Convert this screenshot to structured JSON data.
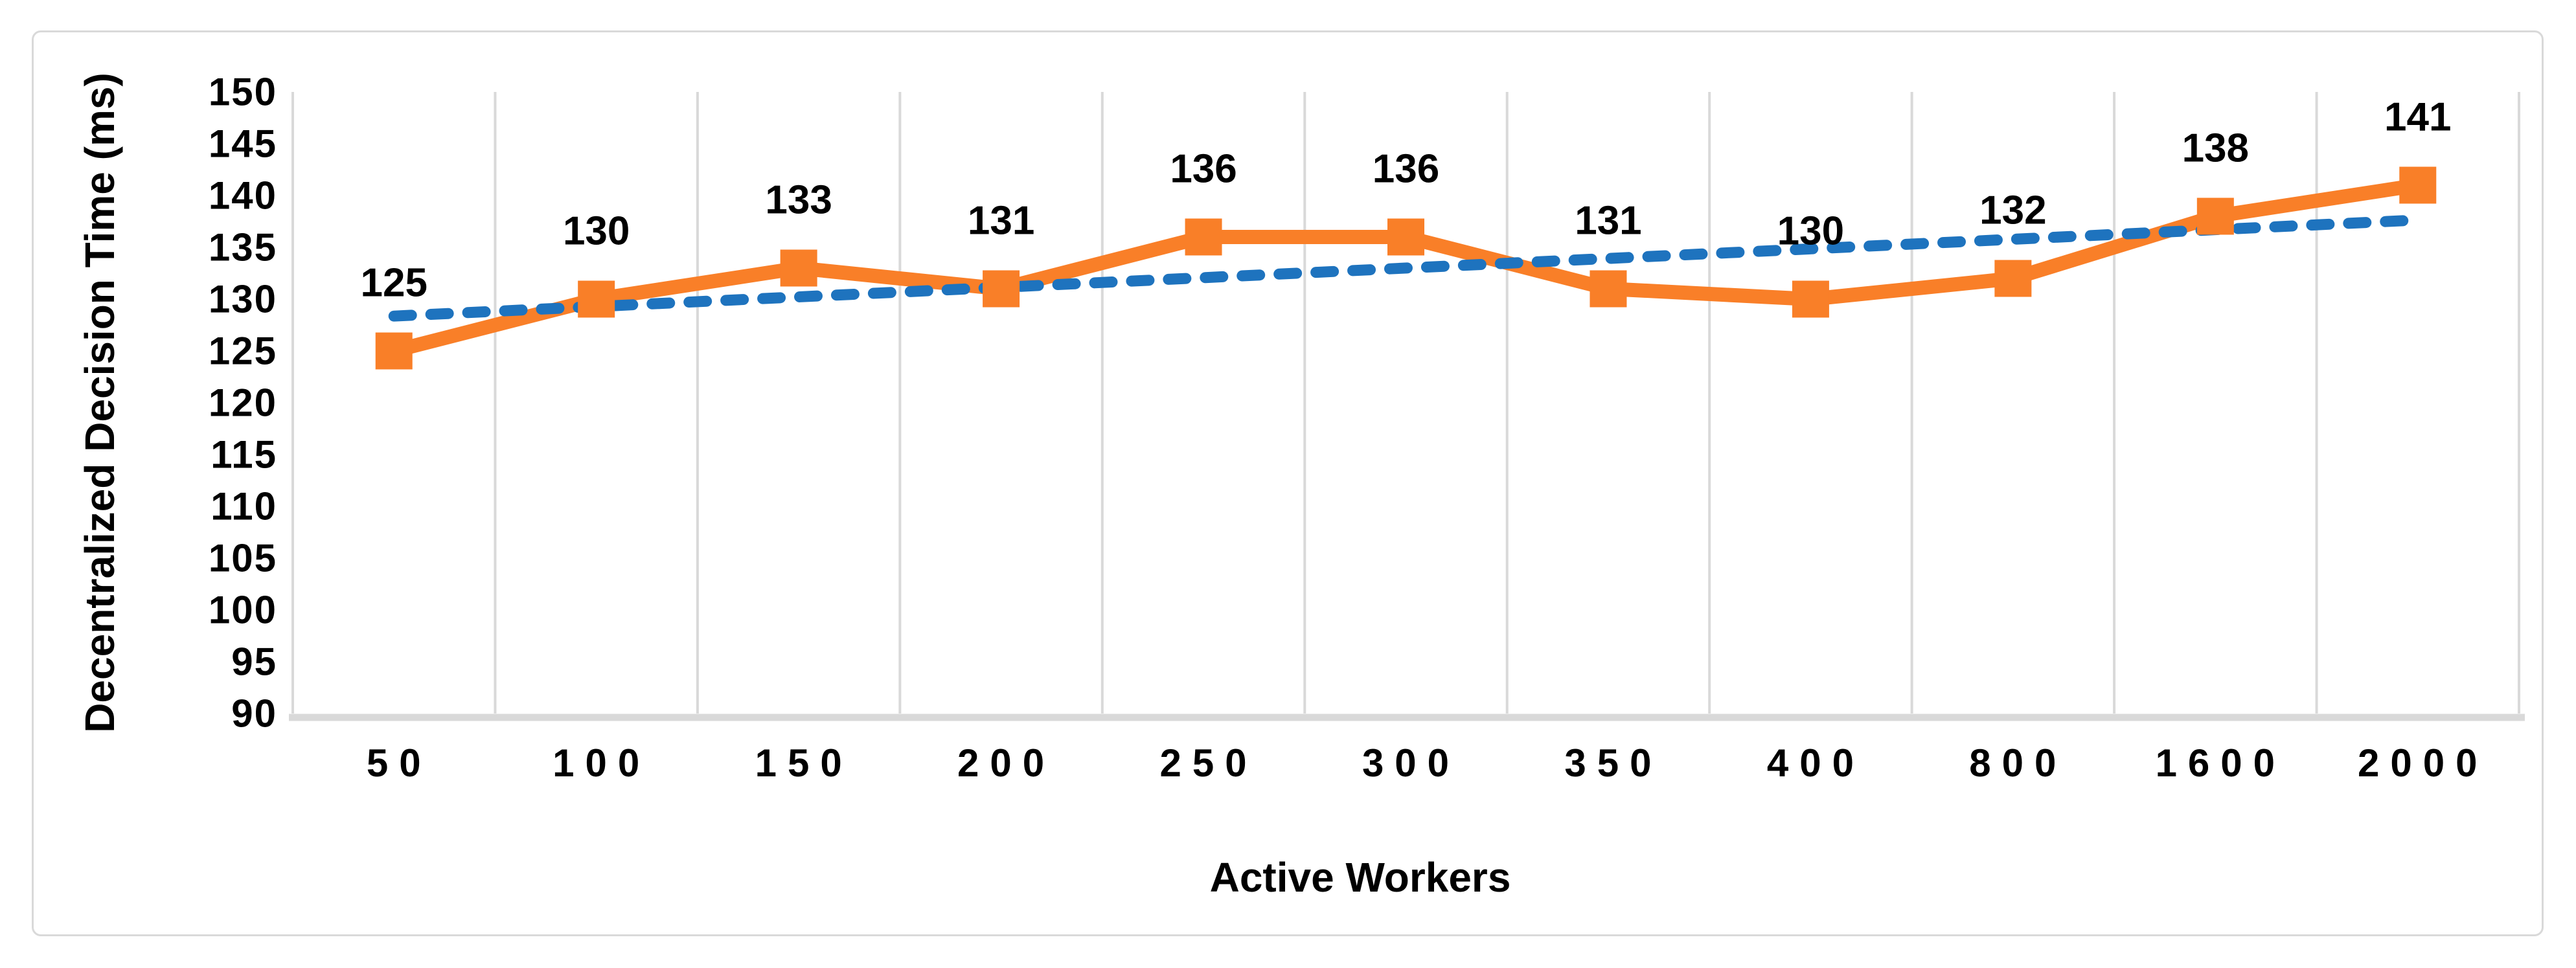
{
  "chart_data": {
    "type": "line",
    "title": "",
    "xlabel": "Active Workers",
    "ylabel": "Decentralized Decision Time (ms)",
    "categories": [
      "50",
      "100",
      "150",
      "200",
      "250",
      "300",
      "350",
      "400",
      "800",
      "1600",
      "2000"
    ],
    "series": [
      {
        "name": "decentralized-decision-time",
        "values": [
          125,
          130,
          133,
          131,
          136,
          136,
          131,
          130,
          132,
          138,
          141
        ],
        "data_labels": [
          "125",
          "130",
          "133",
          "131",
          "136",
          "136",
          "131",
          "130",
          "132",
          "138",
          "141"
        ],
        "color": "#F97F28",
        "marker": "square"
      },
      {
        "name": "linear-trendline",
        "type": "trendline-linear-of-series-0",
        "color": "#1E73BE",
        "dashed": true
      }
    ],
    "ylim": [
      90,
      150
    ],
    "yticks": [
      "150",
      "145",
      "140",
      "135",
      "130",
      "125",
      "120",
      "115",
      "110",
      "105",
      "100",
      "95",
      "90"
    ],
    "grid": "vertical-only",
    "legend": "none",
    "colors": {
      "gridline": "#D9D9D9",
      "axis_line": "#D9D9D9",
      "frame_border": "#D9D9D9",
      "text": "#000000"
    }
  }
}
